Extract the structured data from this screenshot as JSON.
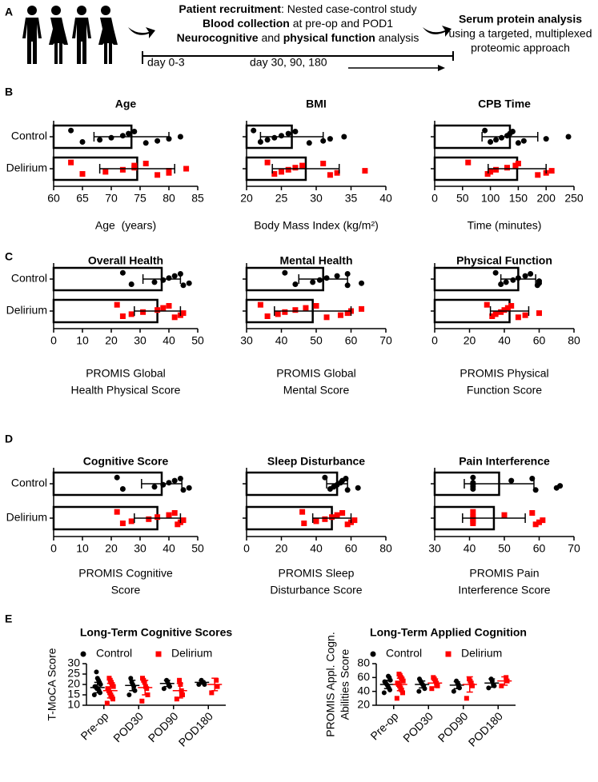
{
  "panel_labels": [
    "A",
    "B",
    "C",
    "D",
    "E"
  ],
  "workflow": {
    "line1": [
      "Patient recruitment",
      ": Nested case-control study"
    ],
    "line2": [
      "Blood collection",
      " at pre-op and POD1"
    ],
    "line3": [
      "Neurocognitive",
      " and ",
      "physical function",
      " analysis"
    ],
    "output": [
      "Serum protein analysis",
      "using a targeted, multiplexed",
      "proteomic approach"
    ],
    "timeline": [
      "day 0-3",
      "day 30, 90, 180"
    ]
  },
  "chart_data": [
    {
      "type": "hbar",
      "title": "Age",
      "categories": [
        "Control",
        "Delirium"
      ],
      "values": [
        73.5,
        74.5
      ],
      "errors": [
        6.5,
        6.5
      ],
      "points": [
        [
          63,
          65,
          68,
          70,
          72,
          73,
          74,
          76,
          78,
          80,
          82
        ],
        [
          63,
          65,
          69,
          72,
          74,
          74,
          76,
          78,
          80,
          80,
          83
        ]
      ],
      "point_colors": [
        "#000000",
        "#ff0000"
      ],
      "xlim": [
        60,
        85
      ],
      "xticks": [
        60,
        65,
        70,
        75,
        80,
        85
      ],
      "xlabel": [
        "Age  (years)"
      ]
    },
    {
      "type": "hbar",
      "title": "BMI",
      "values": [
        26.5,
        28.5
      ],
      "errors": [
        4.5,
        4.8
      ],
      "points": [
        [
          21,
          22,
          23,
          24,
          25,
          26,
          27,
          29,
          31,
          32,
          34
        ],
        [
          23,
          24,
          25,
          26,
          27,
          28,
          31,
          32,
          33,
          37
        ]
      ],
      "point_colors": [
        "#000000",
        "#ff0000"
      ],
      "xlim": [
        20,
        40
      ],
      "xticks": [
        20,
        25,
        30,
        35,
        40
      ],
      "xlabel": [
        "Body Mass Index (kg/m²)"
      ]
    },
    {
      "type": "hbar",
      "title": "CPB Time",
      "values": [
        135,
        148
      ],
      "errors": [
        50,
        52
      ],
      "points": [
        [
          90,
          100,
          110,
          120,
          130,
          135,
          140,
          150,
          160,
          200,
          240
        ],
        [
          60,
          95,
          100,
          110,
          130,
          145,
          150,
          185,
          200,
          210
        ]
      ],
      "point_colors": [
        "#000000",
        "#ff0000"
      ],
      "xlim": [
        0,
        250
      ],
      "xticks": [
        0,
        50,
        100,
        150,
        200,
        250
      ],
      "xlabel": [
        "Time (minutes)"
      ]
    },
    {
      "type": "hbar",
      "title": "Overall Health",
      "categories": [
        "Control",
        "Delirium"
      ],
      "values": [
        37.5,
        36
      ],
      "errors": [
        6.5,
        8
      ],
      "points": [
        [
          24,
          27,
          35,
          38,
          40,
          42,
          44,
          45,
          47
        ],
        [
          22,
          24,
          27,
          31,
          36,
          38,
          40,
          42,
          44,
          45
        ]
      ],
      "point_colors": [
        "#000000",
        "#ff0000"
      ],
      "xlim": [
        0,
        50
      ],
      "xticks": [
        0,
        10,
        20,
        30,
        40,
        50
      ],
      "xlabel": [
        "PROMIS Global",
        "Health Physical Score"
      ]
    },
    {
      "type": "hbar",
      "title": "Mental Health",
      "values": [
        52,
        49
      ],
      "errors": [
        7,
        11
      ],
      "points": [
        [
          41,
          44,
          49,
          51,
          53,
          56,
          59,
          59,
          63
        ],
        [
          34,
          36,
          39,
          41,
          44,
          47,
          50,
          53,
          57,
          59,
          60,
          63
        ]
      ],
      "point_colors": [
        "#000000",
        "#ff0000"
      ],
      "xlim": [
        30,
        70
      ],
      "xticks": [
        30,
        40,
        50,
        60,
        70
      ],
      "xlabel": [
        "PROMIS Global",
        "Mental Score"
      ]
    },
    {
      "type": "hbar",
      "title": "Physical Function",
      "values": [
        48,
        43
      ],
      "errors": [
        10,
        11
      ],
      "points": [
        [
          35,
          38,
          41,
          45,
          48,
          52,
          55,
          59,
          60,
          60
        ],
        [
          30,
          33,
          35,
          38,
          40,
          42,
          44,
          48,
          52,
          60
        ]
      ],
      "point_colors": [
        "#000000",
        "#ff0000"
      ],
      "xlim": [
        0,
        80
      ],
      "xticks": [
        0,
        20,
        40,
        60,
        80
      ],
      "xlabel": [
        "PROMIS Physical",
        "Function Score"
      ]
    },
    {
      "type": "hbar",
      "title": "Cognitive Score",
      "categories": [
        "Control",
        "Delirium"
      ],
      "values": [
        37.5,
        36
      ],
      "errors": [
        7,
        8
      ],
      "points": [
        [
          22,
          24,
          35,
          38,
          40,
          42,
          44,
          45,
          47
        ],
        [
          22,
          24,
          27,
          33,
          36,
          40,
          42,
          43,
          44,
          45
        ]
      ],
      "point_colors": [
        "#000000",
        "#ff0000"
      ],
      "xlim": [
        0,
        50
      ],
      "xticks": [
        0,
        10,
        20,
        30,
        40,
        50
      ],
      "xlabel": [
        "PROMIS Cognitive",
        "Score"
      ]
    },
    {
      "type": "hbar",
      "title": "Sleep Disturbance",
      "values": [
        52,
        49
      ],
      "errors": [
        6,
        11
      ],
      "points": [
        [
          45,
          48,
          50,
          52,
          54,
          55,
          57,
          58,
          64
        ],
        [
          32,
          33,
          40,
          45,
          49,
          52,
          55,
          58,
          60,
          62
        ]
      ],
      "point_colors": [
        "#000000",
        "#ff0000"
      ],
      "xlim": [
        0,
        80
      ],
      "xticks": [
        0,
        20,
        40,
        60,
        80
      ],
      "xlabel": [
        "PROMIS Sleep",
        "Disturbance Score"
      ]
    },
    {
      "type": "hbar",
      "title": "Pain Interference",
      "values": [
        48.5,
        47
      ],
      "errors": [
        10,
        9
      ],
      "points": [
        [
          41,
          41,
          41,
          41,
          41,
          52,
          58,
          59,
          65,
          66
        ],
        [
          41,
          41,
          41,
          41,
          41,
          50,
          58,
          59,
          60,
          61
        ]
      ],
      "point_colors": [
        "#000000",
        "#ff0000"
      ],
      "xlim": [
        30,
        70
      ],
      "xticks": [
        30,
        40,
        50,
        60,
        70
      ],
      "xlabel": [
        "PROMIS Pain",
        "Interference Score"
      ]
    },
    {
      "type": "dot",
      "title": "Long-Term Cognitive Scores",
      "ylabel": [
        "T-MoCA Score"
      ],
      "categories": [
        "Pre-op",
        "POD30",
        "POD90",
        "POD180"
      ],
      "ylim": [
        10,
        30
      ],
      "yticks": [
        10,
        15,
        20,
        25,
        30
      ],
      "series": [
        {
          "name": "Control",
          "color": "#000000",
          "marker": "circle",
          "values": [
            18.5,
            19.5,
            20.5,
            21
          ],
          "errors": [
            2.5,
            2.5,
            1.5,
            0.8
          ],
          "points": [
            [
              15,
              16,
              17,
              18,
              18,
              19,
              19,
              20,
              21,
              22,
              23,
              26
            ],
            [
              15,
              17,
              19,
              20,
              21,
              23
            ],
            [
              18,
              19,
              20,
              21,
              22
            ],
            [
              20,
              20,
              21,
              21,
              22
            ]
          ]
        },
        {
          "name": "Delirium",
          "color": "#ff0000",
          "marker": "square",
          "values": [
            17,
            18.5,
            17,
            20
          ],
          "errors": [
            3.5,
            3.5,
            3.5,
            3
          ],
          "points": [
            [
              11,
              13,
              14,
              15,
              16,
              17,
              18,
              19,
              20,
              21,
              22,
              23
            ],
            [
              12,
              15,
              18,
              19,
              21,
              22,
              23
            ],
            [
              13,
              15,
              17,
              20,
              22
            ],
            [
              16,
              19,
              22
            ]
          ]
        }
      ]
    },
    {
      "type": "dot",
      "title": "Long-Term Applied Cognition",
      "ylabel": [
        "PROMIS Appl. Cogn.",
        "Abilities Score"
      ],
      "categories": [
        "Pre-op",
        "POD30",
        "POD90",
        "POD180"
      ],
      "ylim": [
        20,
        80
      ],
      "yticks": [
        20,
        40,
        60,
        80
      ],
      "series": [
        {
          "name": "Control",
          "color": "#000000",
          "marker": "circle",
          "values": [
            50,
            50,
            49,
            52
          ],
          "errors": [
            6,
            5,
            5,
            6
          ],
          "points": [
            [
              38,
              42,
              45,
              48,
              50,
              52,
              54,
              56,
              60,
              62
            ],
            [
              40,
              44,
              48,
              50,
              52,
              55,
              58
            ],
            [
              40,
              45,
              50,
              52,
              55
            ],
            [
              45,
              48,
              50,
              55,
              58
            ]
          ]
        },
        {
          "name": "Delirium",
          "color": "#ff0000",
          "marker": "square",
          "values": [
            50,
            52,
            50,
            55
          ],
          "errors": [
            9,
            6,
            11,
            6
          ],
          "points": [
            [
              30,
              38,
              42,
              45,
              48,
              50,
              52,
              55,
              58,
              60,
              63,
              65
            ],
            [
              44,
              48,
              52,
              55,
              58,
              60
            ],
            [
              30,
              48,
              52,
              55,
              58
            ],
            [
              48,
              55,
              60
            ]
          ]
        }
      ]
    }
  ]
}
